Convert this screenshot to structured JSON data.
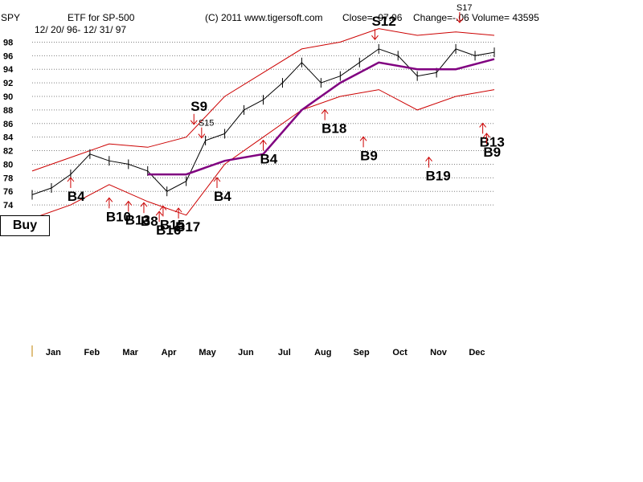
{
  "header": {
    "ticker": "SPY",
    "fund": "ETF for SP-500",
    "copyright": "(C) 2011 www.tigersoft.com",
    "close": "Close=  97.06",
    "change": "Change=-.06",
    "volume": "Volume= 43595",
    "range": "12/ 20/ 96- 12/ 31/ 97"
  },
  "buy_label": "Buy",
  "colors": {
    "price": "#000000",
    "band": "#cc0000",
    "ma": "#800080",
    "arrow": "#cc0000",
    "grid": "#808080"
  },
  "chart_data": {
    "type": "line",
    "title": "",
    "xlabel": "",
    "ylabel": "",
    "x_months": [
      "Jan",
      "Feb",
      "Mar",
      "Apr",
      "May",
      "Jun",
      "Jul",
      "Aug",
      "Sep",
      "Oct",
      "Nov",
      "Dec"
    ],
    "y_ticks": [
      74,
      76,
      78,
      80,
      82,
      84,
      86,
      88,
      90,
      92,
      94,
      96,
      98
    ],
    "ylim": [
      72,
      99
    ],
    "grid": true,
    "series": [
      {
        "key": "price",
        "x": [
          0,
          0.5,
          1,
          1.5,
          2,
          2.5,
          3,
          3.5,
          4,
          4.5,
          5,
          5.5,
          6,
          6.5,
          7,
          7.5,
          8,
          8.5,
          9,
          9.5,
          10,
          10.5,
          11,
          11.5,
          12
        ],
        "values": [
          75.5,
          76.5,
          78.5,
          81.5,
          80.5,
          80,
          79,
          76,
          77.5,
          83.5,
          84.5,
          88,
          89.5,
          92,
          95,
          92,
          93,
          95,
          97,
          96,
          93,
          93.5,
          97,
          96,
          96.5
        ]
      },
      {
        "key": "ma",
        "x": [
          3,
          4,
          5,
          6,
          7,
          8,
          9,
          10,
          11,
          12
        ],
        "values": [
          78.5,
          78.5,
          80.5,
          81.5,
          88,
          92,
          95,
          94,
          94,
          95.5
        ]
      },
      {
        "key": "upper",
        "x": [
          0,
          1,
          2,
          3,
          4,
          5,
          6,
          7,
          8,
          9,
          10,
          11,
          12
        ],
        "values": [
          79,
          81,
          83,
          82.5,
          84,
          90,
          93.5,
          97,
          98,
          100,
          99,
          99.5,
          99
        ]
      },
      {
        "key": "lower",
        "x": [
          0,
          1,
          2,
          3,
          4,
          5,
          6,
          7,
          8,
          9,
          10,
          11,
          12
        ],
        "values": [
          72,
          74,
          77,
          74.5,
          72.5,
          80,
          84,
          88,
          90,
          91,
          88,
          90,
          91
        ]
      }
    ],
    "signals": [
      {
        "label": "B4",
        "x": 1.0,
        "y": 76.5,
        "dir": "up",
        "size": "big"
      },
      {
        "label": "B10",
        "x": 2.0,
        "y": 73.5,
        "dir": "up",
        "size": "big"
      },
      {
        "label": "B13",
        "x": 2.5,
        "y": 73,
        "dir": "up",
        "size": "big"
      },
      {
        "label": "B8",
        "x": 2.9,
        "y": 72.8,
        "dir": "up",
        "size": "big"
      },
      {
        "label": "B15",
        "x": 3.4,
        "y": 72.3,
        "dir": "up",
        "size": "big"
      },
      {
        "label": "B17",
        "x": 3.8,
        "y": 72,
        "dir": "up",
        "size": "big"
      },
      {
        "label": "B16",
        "x": 3.3,
        "y": 71.5,
        "dir": "up",
        "size": "big"
      },
      {
        "label": "S9",
        "x": 4.2,
        "y": 86,
        "dir": "down",
        "size": "big"
      },
      {
        "label": "S15",
        "x": 4.4,
        "y": 84,
        "dir": "down",
        "size": "small"
      },
      {
        "label": "B4",
        "x": 4.8,
        "y": 76.5,
        "dir": "up",
        "size": "big"
      },
      {
        "label": "B4",
        "x": 6.0,
        "y": 82,
        "dir": "up",
        "size": "big"
      },
      {
        "label": "B18",
        "x": 7.6,
        "y": 86.5,
        "dir": "up",
        "size": "big"
      },
      {
        "label": "B9",
        "x": 8.6,
        "y": 82.5,
        "dir": "up",
        "size": "big"
      },
      {
        "label": "S12",
        "x": 8.9,
        "y": 98.5,
        "dir": "down",
        "size": "big"
      },
      {
        "label": "B19",
        "x": 10.3,
        "y": 79.5,
        "dir": "up",
        "size": "big"
      },
      {
        "label": "S17",
        "x": 11.1,
        "y": 101,
        "dir": "down",
        "size": "small"
      },
      {
        "label": "B13",
        "x": 11.7,
        "y": 84.5,
        "dir": "up",
        "size": "big"
      },
      {
        "label": "B9",
        "x": 11.8,
        "y": 83,
        "dir": "up",
        "size": "big"
      }
    ]
  }
}
